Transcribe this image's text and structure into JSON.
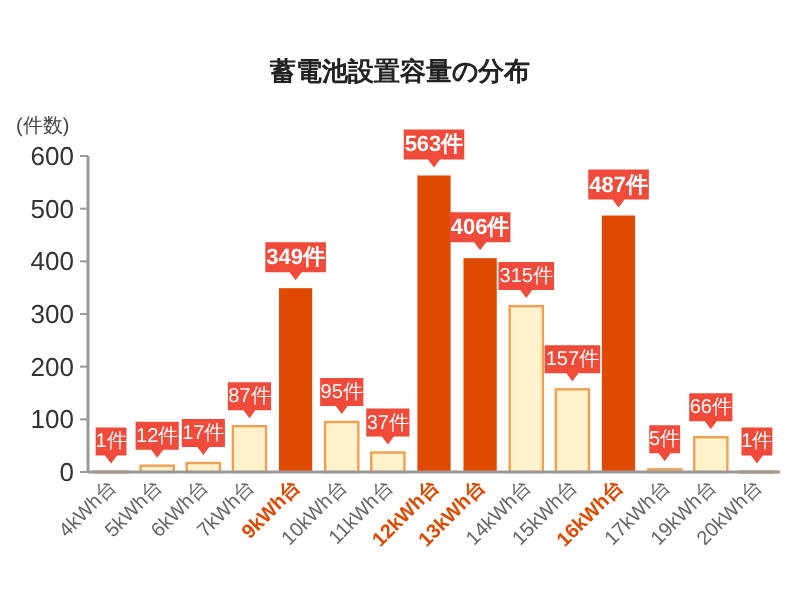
{
  "chart_data": {
    "type": "bar",
    "title": "蓄電池設置容量の分布",
    "ylabel": "(件数)",
    "categories": [
      "4kWh台",
      "5kWh台",
      "6kWh台",
      "7kWh台",
      "9kWh台",
      "10kWh台",
      "11kWh台",
      "12kWh台",
      "13kWh台",
      "14kWh台",
      "15kWh台",
      "16kWh台",
      "17kWh台",
      "19kWh台",
      "20kWh台"
    ],
    "values": [
      1,
      12,
      17,
      87,
      349,
      95,
      37,
      563,
      406,
      315,
      157,
      487,
      5,
      66,
      1
    ],
    "colors": [
      "#fff2cc",
      "#fff2cc",
      "#fff2cc",
      "#fff2cc",
      "#e04a00",
      "#fff2cc",
      "#fff2cc",
      "#e04a00",
      "#e04a00",
      "#fff2cc",
      "#fff2cc",
      "#e04a00",
      "#fff2cc",
      "#fff2cc",
      "#fff2cc"
    ],
    "value_labels": [
      "1件",
      "12件",
      "17件",
      "87件",
      "349件",
      "95件",
      "37件",
      "563件",
      "406件",
      "315件",
      "157件",
      "487件",
      "5件",
      "66件",
      "1件"
    ],
    "ylim": [
      0,
      600
    ],
    "yticks": [
      0,
      100,
      200,
      300,
      400,
      500,
      600
    ],
    "grid": false
  }
}
